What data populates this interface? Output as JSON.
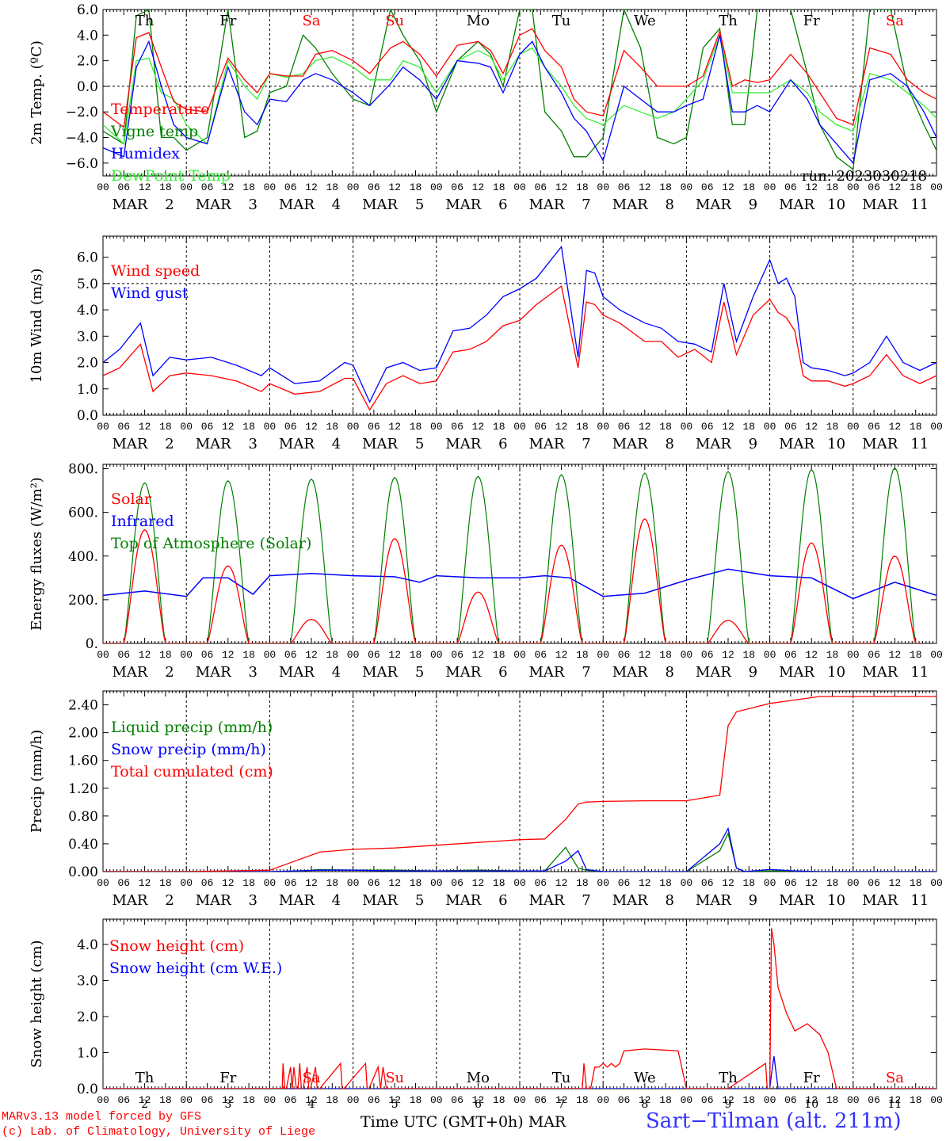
{
  "days": [
    {
      "date": "2",
      "dow": "Th"
    },
    {
      "date": "3",
      "dow": "Fr"
    },
    {
      "date": "4",
      "dow": "Sa"
    },
    {
      "date": "5",
      "dow": "Su"
    },
    {
      "date": "6",
      "dow": "Mo"
    },
    {
      "date": "7",
      "dow": "Tu"
    },
    {
      "date": "8",
      "dow": "We"
    },
    {
      "date": "9",
      "dow": "Th"
    },
    {
      "date": "10",
      "dow": "Fr"
    },
    {
      "date": "11",
      "dow": "Sa"
    }
  ],
  "month": "MAR",
  "hour_ticks": [
    "00",
    "06",
    "12",
    "18"
  ],
  "colors": {
    "red": "#ff0000",
    "green": "#008000",
    "blue": "#0000ff",
    "lightgreen": "#33ee33",
    "weekend": "#ff0000",
    "weekday": "#000000"
  },
  "chart_data": [
    {
      "type": "line",
      "ylabel": "2m Temp. (ºC)",
      "ylim": [
        -7,
        6
      ],
      "yticks": [
        "6.0",
        "4.0",
        "2.0",
        "0.0",
        "−2.0",
        "−4.0",
        "−6.0"
      ],
      "ytick_values": [
        6,
        4,
        2,
        0,
        -2,
        -4,
        -6
      ],
      "ref_line": 0,
      "annotation": "run: 2023030218",
      "x_days": [
        0,
        0.25,
        0.4,
        0.55,
        0.7,
        0.85,
        1,
        1.25,
        1.5,
        1.7,
        1.85,
        2,
        2.2,
        2.4,
        2.55,
        2.75,
        3,
        3.2,
        3.45,
        3.6,
        3.8,
        4,
        4.25,
        4.5,
        4.65,
        4.8,
        5,
        5.15,
        5.3,
        5.5,
        5.65,
        5.8,
        6,
        6.25,
        6.45,
        6.65,
        6.85,
        7,
        7.2,
        7.4,
        7.55,
        7.7,
        7.85,
        8,
        8.25,
        8.45,
        8.6,
        8.8,
        9,
        9.2,
        9.45,
        9.65,
        9.85,
        10
      ],
      "series": [
        {
          "name": "Temperature",
          "color": "#ff0000",
          "values": [
            -2.0,
            -3.2,
            3.8,
            4.2,
            1.5,
            -1.2,
            -1.8,
            -2.0,
            2.2,
            0.5,
            -0.5,
            1.0,
            0.8,
            0.8,
            2.5,
            2.8,
            2.0,
            1.0,
            3.0,
            3.5,
            2.5,
            0.8,
            3.2,
            3.5,
            2.8,
            1.0,
            4.0,
            4.5,
            2.8,
            1.5,
            -1.0,
            -2.0,
            -2.3,
            2.8,
            1.5,
            0.0,
            0.0,
            0.0,
            0.8,
            4.3,
            0.0,
            0.5,
            0.3,
            0.5,
            2.5,
            1.0,
            -0.5,
            -2.5,
            -3.0,
            3.0,
            2.5,
            0.5,
            -0.5,
            -1.0
          ]
        },
        {
          "name": "Vigne temp",
          "color": "#008000",
          "values": [
            -3.5,
            -4.5,
            5.5,
            6.0,
            -4.0,
            -4.0,
            -5.0,
            -4.0,
            6.0,
            -4.0,
            -3.5,
            -0.5,
            0.0,
            4.0,
            3.0,
            1.0,
            -1.0,
            -1.5,
            6.0,
            4.0,
            2.0,
            -2.0,
            2.0,
            3.5,
            2.5,
            0.0,
            6.0,
            6.0,
            -2.0,
            -3.5,
            -5.5,
            -5.5,
            -4.0,
            6.0,
            3.0,
            -4.0,
            -4.5,
            -4.0,
            3.0,
            4.5,
            -3.0,
            -3.0,
            6.0,
            6.5,
            6.0,
            1.0,
            -3.0,
            -5.5,
            -6.5,
            6.0,
            6.0,
            0.0,
            -3.0,
            -5.0
          ]
        },
        {
          "name": "Humidex",
          "color": "#0000ff",
          "values": [
            -4.8,
            -5.5,
            1.5,
            3.5,
            0.0,
            -3.0,
            -4.0,
            -4.5,
            1.5,
            -2.0,
            -3.0,
            -1.0,
            -1.2,
            0.5,
            1.0,
            0.5,
            -0.5,
            -1.5,
            0.2,
            1.5,
            0.5,
            -1.0,
            2.0,
            1.8,
            1.5,
            -0.5,
            2.5,
            3.5,
            1.5,
            -0.5,
            -2.5,
            -3.5,
            -5.8,
            0.0,
            -1.0,
            -2.0,
            -2.0,
            -1.5,
            -1.0,
            4.0,
            -2.0,
            -2.0,
            -1.5,
            -2.0,
            0.5,
            -1.0,
            -3.0,
            -4.5,
            -6.0,
            0.5,
            1.0,
            0.0,
            -2.0,
            -4.0
          ]
        },
        {
          "name": "DewPoint Temp",
          "color": "#33ee33",
          "values": [
            -3.0,
            -4.5,
            2.0,
            2.2,
            -0.5,
            -1.0,
            -3.0,
            -4.5,
            2.0,
            0.0,
            -1.0,
            1.0,
            0.7,
            1.0,
            2.0,
            2.3,
            1.5,
            0.5,
            0.5,
            2.0,
            1.5,
            -0.5,
            2.0,
            2.8,
            2.3,
            0.5,
            2.5,
            3.0,
            1.5,
            0.0,
            -1.5,
            -2.5,
            -3.0,
            -1.5,
            -2.0,
            -2.5,
            -2.0,
            -1.0,
            0.5,
            4.0,
            -0.5,
            -0.5,
            -0.5,
            -0.5,
            0.5,
            -0.5,
            -2.0,
            -3.0,
            -3.5,
            1.0,
            0.5,
            -0.5,
            -1.5,
            -2.5
          ]
        }
      ]
    },
    {
      "type": "line",
      "ylabel": "10m Wind (m/s)",
      "ylim": [
        0,
        6.8
      ],
      "yticks": [
        "6.0",
        "5.0",
        "4.0",
        "3.0",
        "2.0",
        "1.0",
        "0.0"
      ],
      "ytick_values": [
        6,
        5,
        4,
        3,
        2,
        1,
        0
      ],
      "ref_line": 5,
      "x_days": [
        0,
        0.2,
        0.45,
        0.6,
        0.8,
        1,
        1.3,
        1.6,
        1.9,
        2,
        2.3,
        2.6,
        2.9,
        3,
        3.2,
        3.4,
        3.6,
        3.8,
        4,
        4.2,
        4.4,
        4.6,
        4.8,
        5,
        5.2,
        5.5,
        5.7,
        5.8,
        5.9,
        6,
        6.2,
        6.5,
        6.7,
        6.9,
        7.1,
        7.3,
        7.45,
        7.6,
        7.8,
        8,
        8.1,
        8.2,
        8.3,
        8.4,
        8.5,
        8.7,
        8.9,
        9,
        9.2,
        9.4,
        9.6,
        9.8,
        10
      ],
      "series": [
        {
          "name": "Wind speed",
          "color": "#ff0000",
          "values": [
            1.5,
            1.8,
            2.7,
            0.9,
            1.5,
            1.6,
            1.5,
            1.3,
            0.9,
            1.2,
            0.8,
            0.9,
            1.4,
            1.4,
            0.2,
            1.2,
            1.5,
            1.2,
            1.3,
            2.4,
            2.5,
            2.8,
            3.4,
            3.6,
            4.2,
            4.9,
            1.8,
            4.3,
            4.2,
            3.8,
            3.5,
            2.8,
            2.8,
            2.2,
            2.5,
            2.0,
            4.3,
            2.3,
            3.8,
            4.4,
            3.9,
            3.7,
            3.2,
            1.5,
            1.3,
            1.3,
            1.1,
            1.2,
            1.5,
            2.3,
            1.5,
            1.2,
            1.5
          ]
        },
        {
          "name": "Wind gust",
          "color": "#0000ff",
          "values": [
            2.0,
            2.5,
            3.5,
            1.5,
            2.2,
            2.1,
            2.2,
            1.9,
            1.5,
            1.8,
            1.2,
            1.3,
            2.0,
            1.9,
            0.5,
            1.8,
            2.0,
            1.7,
            1.8,
            3.2,
            3.3,
            3.8,
            4.5,
            4.8,
            5.2,
            6.4,
            2.2,
            5.5,
            5.4,
            4.5,
            4.0,
            3.5,
            3.3,
            2.8,
            2.7,
            2.4,
            5.0,
            2.8,
            4.5,
            5.9,
            5.0,
            5.2,
            4.5,
            2.0,
            1.8,
            1.7,
            1.5,
            1.6,
            2.0,
            3.0,
            2.0,
            1.7,
            2.0
          ]
        }
      ]
    },
    {
      "type": "line",
      "ylabel": "Energy fluxes (W/m²)",
      "ylim": [
        0,
        820
      ],
      "yticks": [
        "800.",
        "600.",
        "400.",
        "200.",
        "0."
      ],
      "ytick_values": [
        800,
        600,
        400,
        200,
        0
      ],
      "solar_noon_hour": 12,
      "daylight_hours": 12,
      "toa_peaks": [
        735,
        745,
        752,
        760,
        765,
        772,
        780,
        787,
        795,
        803
      ],
      "solar_peaks": [
        520,
        355,
        110,
        480,
        235,
        450,
        570,
        105,
        460,
        400
      ],
      "infrared_x_days": [
        0,
        0.5,
        1,
        1.2,
        1.5,
        1.8,
        2,
        2.5,
        3,
        3.5,
        3.8,
        4,
        4.5,
        5,
        5.3,
        5.6,
        6,
        6.5,
        7,
        7.5,
        8,
        8.5,
        9,
        9.5,
        10
      ],
      "infrared_values": [
        220,
        240,
        215,
        300,
        300,
        225,
        310,
        320,
        310,
        305,
        280,
        310,
        300,
        300,
        310,
        300,
        215,
        230,
        290,
        340,
        310,
        300,
        205,
        280,
        220
      ],
      "series": [
        {
          "name": "Solar",
          "color": "#ff0000"
        },
        {
          "name": "Infrared",
          "color": "#0000ff"
        },
        {
          "name": "Top of Atmosphere (Solar)",
          "color": "#008000"
        }
      ]
    },
    {
      "type": "line",
      "ylabel": "Precip (mm/h)",
      "ylim": [
        0,
        2.6
      ],
      "yticks": [
        "2.40",
        "2.00",
        "1.60",
        "1.20",
        "0.80",
        "0.40",
        "0.00"
      ],
      "ytick_values": [
        2.4,
        2.0,
        1.6,
        1.2,
        0.8,
        0.4,
        0.0
      ],
      "x_days": [
        0,
        0.5,
        1,
        1.5,
        2,
        2.3,
        2.6,
        3,
        3.5,
        4,
        4.5,
        5,
        5.3,
        5.55,
        5.7,
        5.8,
        6,
        6.5,
        7,
        7.4,
        7.5,
        7.6,
        7.7,
        8,
        8.3,
        8.6,
        9,
        10
      ],
      "series": [
        {
          "name": "Liquid precip (mm/h)",
          "color": "#008000",
          "values": [
            0,
            0,
            0,
            0,
            0,
            0,
            0.03,
            0.02,
            0.02,
            0.01,
            0.02,
            0.01,
            0.01,
            0.35,
            0.05,
            0.02,
            0,
            0,
            0,
            0.3,
            0.55,
            0.05,
            0,
            0.01,
            0.01,
            0,
            0,
            0
          ]
        },
        {
          "name": "Snow precip (mm/h)",
          "color": "#0000ff",
          "values": [
            0,
            0,
            0,
            0,
            0,
            0.01,
            0.02,
            0.02,
            0.01,
            0.01,
            0.01,
            0.01,
            0.01,
            0.15,
            0.3,
            0.03,
            0,
            0,
            0,
            0.4,
            0.62,
            0.05,
            0,
            0.03,
            0.01,
            0,
            0,
            0
          ]
        },
        {
          "name": "Total cumulated (cm)",
          "color": "#ff0000",
          "values": [
            0,
            0,
            0,
            0.01,
            0.02,
            0.15,
            0.28,
            0.32,
            0.34,
            0.38,
            0.42,
            0.46,
            0.47,
            0.75,
            0.97,
            1.0,
            1.01,
            1.02,
            1.02,
            1.1,
            2.1,
            2.3,
            2.33,
            2.42,
            2.47,
            2.52,
            2.52,
            2.52
          ]
        }
      ]
    },
    {
      "type": "line",
      "ylabel": "Snow height (cm)",
      "ylim": [
        0,
        4.7
      ],
      "yticks": [
        "4.0",
        "3.0",
        "2.0",
        "1.0",
        "0.0"
      ],
      "ytick_values": [
        4,
        3,
        2,
        1,
        0
      ],
      "xlabel": "Time UTC (GMT+0h)",
      "x_days": [
        0,
        2.15,
        2.16,
        2.18,
        2.2,
        2.25,
        2.27,
        2.29,
        2.32,
        2.34,
        2.36,
        2.38,
        2.4,
        2.45,
        2.47,
        2.49,
        2.55,
        2.57,
        2.59,
        2.6,
        2.85,
        2.87,
        2.89,
        3.15,
        3.17,
        3.19,
        3.3,
        3.33,
        3.36,
        3.4,
        3.5,
        5.75,
        5.77,
        5.8,
        5.85,
        5.9,
        5.95,
        6.0,
        6.05,
        6.1,
        6.15,
        6.2,
        6.25,
        6.5,
        6.9,
        7.0,
        7.5,
        7.95,
        7.97,
        8.0,
        8.02,
        8.05,
        8.1,
        8.2,
        8.3,
        8.45,
        8.6,
        8.7,
        8.8,
        8.95,
        9,
        10
      ],
      "series": [
        {
          "name": "Snow height (cm)",
          "color": "#ff0000",
          "values": [
            0,
            0,
            0.7,
            0,
            0,
            0.6,
            0,
            0.6,
            0,
            0,
            0.7,
            0,
            0,
            0.6,
            0,
            0,
            0.6,
            0,
            0,
            0,
            0.7,
            0,
            0,
            0.7,
            0,
            0,
            0.6,
            0,
            0.6,
            0,
            0,
            0,
            0.7,
            0,
            0,
            0.6,
            0.6,
            0.7,
            0.6,
            0.7,
            0.6,
            0.7,
            1.05,
            1.1,
            1.05,
            0,
            0,
            0.7,
            0,
            0,
            4.45,
            4.0,
            2.8,
            2.1,
            1.6,
            1.8,
            1.5,
            1.0,
            0,
            0,
            0,
            0
          ]
        },
        {
          "name": "Snow height (cm W.E.)",
          "color": "#0000ff",
          "values": [
            0,
            0,
            0,
            0,
            0,
            0,
            0,
            0,
            0,
            0,
            0,
            0,
            0,
            0,
            0,
            0,
            0,
            0,
            0,
            0,
            0,
            0,
            0,
            0,
            0,
            0,
            0,
            0,
            0,
            0,
            0,
            0,
            0,
            0,
            0,
            0,
            0,
            0,
            0,
            0,
            0,
            0,
            0,
            0,
            0,
            0,
            0,
            0,
            0,
            0,
            0.4,
            0.9,
            0,
            0,
            0,
            0,
            0,
            0,
            0,
            0,
            0,
            0
          ]
        }
      ]
    }
  ],
  "footer": {
    "model_line": "MARv3.13 model forced by GFS",
    "credit_line": "(c) Lab. of Climatology, University of Liege",
    "axis_title": "Time UTC (GMT+0h)",
    "axis_month": "MAR",
    "station": "Sart−Tilman (alt. 211m)"
  }
}
